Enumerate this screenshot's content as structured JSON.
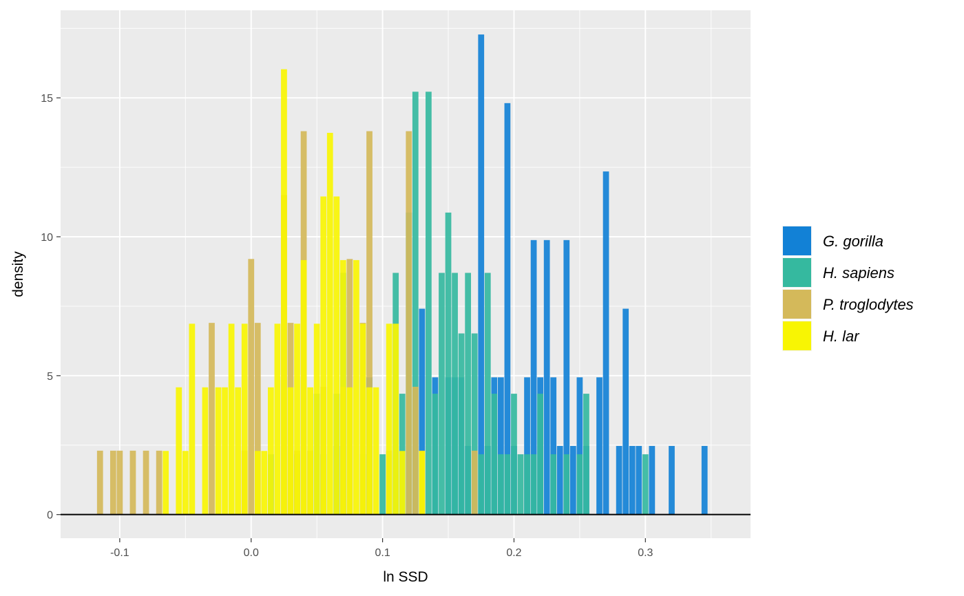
{
  "chart_data": {
    "type": "bar",
    "title": "",
    "xlabel": "ln SSD",
    "ylabel": "density",
    "xlim": [
      -0.145,
      0.38
    ],
    "ylim": [
      -0.85,
      18.15
    ],
    "bin_width": 0.005,
    "x_ticks": [
      -0.1,
      0.0,
      0.1,
      0.2,
      0.3
    ],
    "x_tick_labels": [
      "-0.1",
      "0.0",
      "0.1",
      "0.2",
      "0.3"
    ],
    "y_ticks": [
      0,
      5,
      10,
      15
    ],
    "y_tick_labels": [
      "0",
      "5",
      "10",
      "15"
    ],
    "grid": true,
    "legend_position": "right",
    "series": [
      {
        "name": "G. gorilla",
        "color": "#1281d6",
        "bins": [
          [
            0.065,
            2.47
          ],
          [
            0.09,
            4.94
          ],
          [
            0.13,
            7.41
          ],
          [
            0.14,
            4.94
          ],
          [
            0.15,
            4.94
          ],
          [
            0.155,
            4.94
          ],
          [
            0.16,
            4.94
          ],
          [
            0.165,
            2.47
          ],
          [
            0.175,
            17.28
          ],
          [
            0.18,
            2.47
          ],
          [
            0.185,
            4.94
          ],
          [
            0.19,
            4.94
          ],
          [
            0.195,
            14.81
          ],
          [
            0.2,
            2.47
          ],
          [
            0.21,
            4.94
          ],
          [
            0.215,
            9.88
          ],
          [
            0.22,
            4.94
          ],
          [
            0.225,
            9.88
          ],
          [
            0.23,
            4.94
          ],
          [
            0.235,
            2.47
          ],
          [
            0.24,
            9.88
          ],
          [
            0.245,
            2.47
          ],
          [
            0.25,
            4.94
          ],
          [
            0.255,
            2.47
          ],
          [
            0.265,
            4.94
          ],
          [
            0.27,
            12.35
          ],
          [
            0.28,
            2.47
          ],
          [
            0.285,
            7.41
          ],
          [
            0.29,
            2.47
          ],
          [
            0.295,
            2.47
          ],
          [
            0.305,
            2.47
          ],
          [
            0.32,
            2.47
          ],
          [
            0.345,
            2.47
          ]
        ]
      },
      {
        "name": "H. sapiens",
        "color": "#35b99f",
        "bins": [
          [
            0.015,
            2.17
          ],
          [
            0.035,
            2.17
          ],
          [
            0.05,
            4.35
          ],
          [
            0.055,
            2.17
          ],
          [
            0.065,
            4.35
          ],
          [
            0.07,
            8.7
          ],
          [
            0.085,
            2.17
          ],
          [
            0.09,
            2.17
          ],
          [
            0.1,
            2.17
          ],
          [
            0.105,
            2.17
          ],
          [
            0.11,
            8.7
          ],
          [
            0.115,
            4.35
          ],
          [
            0.12,
            10.87
          ],
          [
            0.125,
            15.22
          ],
          [
            0.13,
            2.17
          ],
          [
            0.135,
            15.22
          ],
          [
            0.14,
            4.35
          ],
          [
            0.145,
            8.7
          ],
          [
            0.15,
            10.87
          ],
          [
            0.155,
            8.7
          ],
          [
            0.16,
            6.52
          ],
          [
            0.165,
            8.7
          ],
          [
            0.17,
            6.52
          ],
          [
            0.175,
            2.17
          ],
          [
            0.18,
            8.7
          ],
          [
            0.185,
            4.35
          ],
          [
            0.19,
            2.17
          ],
          [
            0.195,
            2.17
          ],
          [
            0.2,
            4.35
          ],
          [
            0.205,
            2.17
          ],
          [
            0.21,
            2.17
          ],
          [
            0.215,
            2.17
          ],
          [
            0.22,
            4.35
          ],
          [
            0.23,
            2.17
          ],
          [
            0.24,
            2.17
          ],
          [
            0.25,
            2.17
          ],
          [
            0.255,
            4.35
          ],
          [
            0.3,
            2.17
          ]
        ]
      },
      {
        "name": "P. troglodytes",
        "color": "#d4b95a",
        "bins": [
          [
            -0.115,
            2.3
          ],
          [
            -0.105,
            2.3
          ],
          [
            -0.1,
            2.3
          ],
          [
            -0.09,
            2.3
          ],
          [
            -0.08,
            2.3
          ],
          [
            -0.07,
            2.3
          ],
          [
            -0.03,
            6.9
          ],
          [
            -0.005,
            2.3
          ],
          [
            0.0,
            9.2
          ],
          [
            0.005,
            6.9
          ],
          [
            0.025,
            11.5
          ],
          [
            0.03,
            6.9
          ],
          [
            0.035,
            2.3
          ],
          [
            0.04,
            13.8
          ],
          [
            0.045,
            2.3
          ],
          [
            0.055,
            4.6
          ],
          [
            0.07,
            4.6
          ],
          [
            0.075,
            9.2
          ],
          [
            0.085,
            6.9
          ],
          [
            0.09,
            13.8
          ],
          [
            0.105,
            2.3
          ],
          [
            0.12,
            13.8
          ],
          [
            0.125,
            4.6
          ],
          [
            0.13,
            2.3
          ],
          [
            0.17,
            2.3
          ]
        ]
      },
      {
        "name": "H. lar",
        "color": "#f8f503",
        "bins": [
          [
            -0.065,
            2.29
          ],
          [
            -0.055,
            4.58
          ],
          [
            -0.05,
            2.29
          ],
          [
            -0.045,
            6.87
          ],
          [
            -0.035,
            4.58
          ],
          [
            -0.025,
            4.58
          ],
          [
            -0.02,
            4.58
          ],
          [
            -0.015,
            6.87
          ],
          [
            -0.01,
            4.58
          ],
          [
            -0.005,
            6.87
          ],
          [
            0.005,
            2.29
          ],
          [
            0.01,
            2.29
          ],
          [
            0.015,
            4.58
          ],
          [
            0.02,
            6.87
          ],
          [
            0.025,
            16.03
          ],
          [
            0.03,
            4.58
          ],
          [
            0.035,
            6.87
          ],
          [
            0.04,
            9.16
          ],
          [
            0.045,
            4.58
          ],
          [
            0.05,
            6.87
          ],
          [
            0.055,
            11.45
          ],
          [
            0.06,
            13.74
          ],
          [
            0.065,
            11.45
          ],
          [
            0.07,
            9.16
          ],
          [
            0.075,
            4.58
          ],
          [
            0.08,
            9.16
          ],
          [
            0.085,
            6.87
          ],
          [
            0.09,
            4.58
          ],
          [
            0.095,
            4.58
          ],
          [
            0.105,
            6.87
          ],
          [
            0.11,
            6.87
          ],
          [
            0.115,
            2.29
          ],
          [
            0.13,
            2.29
          ]
        ]
      }
    ]
  }
}
